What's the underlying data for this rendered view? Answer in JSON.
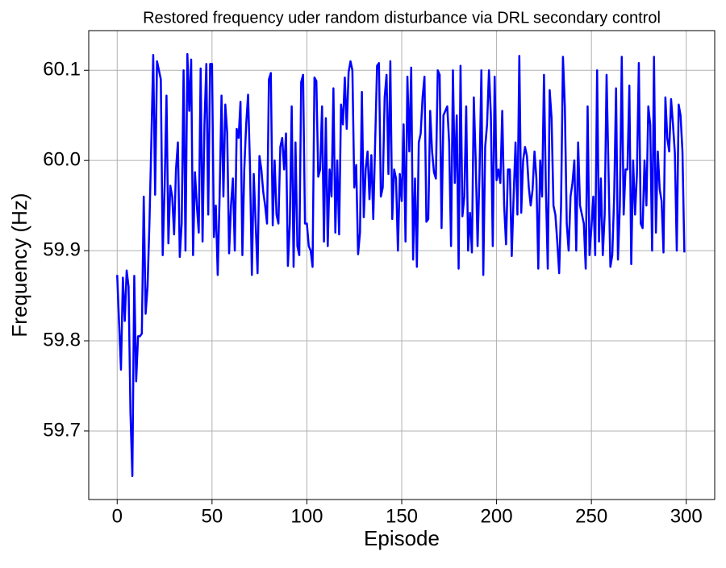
{
  "chart_data": {
    "type": "line",
    "title": "Restored frequency uder random disturbance via DRL secondary control",
    "xlabel": "Episode",
    "ylabel": "Frequency (Hz)",
    "xlim": [
      -15,
      315
    ],
    "ylim": [
      59.624,
      60.144
    ],
    "xticks": [
      0,
      50,
      100,
      150,
      200,
      250,
      300
    ],
    "yticks": [
      59.7,
      59.8,
      59.9,
      {
        "value": 60,
        "label": "60.0"
      },
      60.1
    ],
    "grid": true,
    "x": [
      0,
      1,
      2,
      3,
      4,
      5,
      6,
      7,
      8,
      9,
      10,
      11,
      12,
      13,
      14,
      15,
      16,
      17,
      18,
      19,
      20,
      21,
      22,
      23,
      24,
      25,
      26,
      27,
      28,
      29,
      30,
      31,
      32,
      33,
      34,
      35,
      36,
      37,
      38,
      39,
      40,
      41,
      42,
      43,
      44,
      45,
      46,
      47,
      48,
      49,
      50,
      51,
      52,
      53,
      54,
      55,
      56,
      57,
      58,
      59,
      60,
      61,
      62,
      63,
      64,
      65,
      66,
      67,
      68,
      69,
      70,
      71,
      72,
      73,
      74,
      75,
      76,
      77,
      78,
      79,
      80,
      81,
      82,
      83,
      84,
      85,
      86,
      87,
      88,
      89,
      90,
      91,
      92,
      93,
      94,
      95,
      96,
      97,
      98,
      99,
      100,
      101,
      102,
      103,
      104,
      105,
      106,
      107,
      108,
      109,
      110,
      111,
      112,
      113,
      114,
      115,
      116,
      117,
      118,
      119,
      120,
      121,
      122,
      123,
      124,
      125,
      126,
      127,
      128,
      129,
      130,
      131,
      132,
      133,
      134,
      135,
      136,
      137,
      138,
      139,
      140,
      141,
      142,
      143,
      144,
      145,
      146,
      147,
      148,
      149,
      150,
      151,
      152,
      153,
      154,
      155,
      156,
      157,
      158,
      159,
      160,
      161,
      162,
      163,
      164,
      165,
      166,
      167,
      168,
      169,
      170,
      171,
      172,
      173,
      174,
      175,
      176,
      177,
      178,
      179,
      180,
      181,
      182,
      183,
      184,
      185,
      186,
      187,
      188,
      189,
      190,
      191,
      192,
      193,
      194,
      195,
      196,
      197,
      198,
      199,
      200,
      201,
      202,
      203,
      204,
      205,
      206,
      207,
      208,
      209,
      210,
      211,
      212,
      213,
      214,
      215,
      216,
      217,
      218,
      219,
      220,
      221,
      222,
      223,
      224,
      225,
      226,
      227,
      228,
      229,
      230,
      231,
      232,
      233,
      234,
      235,
      236,
      237,
      238,
      239,
      240,
      241,
      242,
      243,
      244,
      245,
      246,
      247,
      248,
      249,
      250,
      251,
      252,
      253,
      254,
      255,
      256,
      257,
      258,
      259,
      260,
      261,
      262,
      263,
      264,
      265,
      266,
      267,
      268,
      269,
      270,
      271,
      272,
      273,
      274,
      275,
      276,
      277,
      278,
      279,
      280,
      281,
      282,
      283,
      284,
      285,
      286,
      287,
      288,
      289,
      290,
      291,
      292,
      293,
      294,
      295,
      296,
      297,
      298,
      299
    ],
    "series": [
      {
        "color": "#0000ff",
        "values": [
          59.873,
          59.82,
          59.768,
          59.87,
          59.822,
          59.878,
          59.86,
          59.72,
          59.65,
          59.872,
          59.755,
          59.805,
          59.805,
          59.808,
          59.96,
          59.83,
          59.86,
          59.93,
          60.02,
          60.117,
          59.962,
          60.11,
          60.1,
          60.09,
          59.895,
          59.97,
          60.072,
          59.908,
          59.972,
          59.96,
          59.918,
          59.99,
          60.02,
          59.893,
          59.93,
          60.1,
          59.9,
          60.118,
          60.055,
          60.112,
          59.895,
          59.987,
          59.95,
          59.92,
          60.102,
          59.91,
          60.04,
          60.107,
          59.94,
          60.107,
          60.107,
          59.915,
          59.95,
          59.873,
          59.96,
          60.072,
          59.96,
          60.062,
          60.03,
          59.897,
          59.95,
          59.98,
          59.9,
          60.035,
          60.025,
          60.065,
          59.895,
          59.99,
          60.04,
          60.073,
          59.995,
          59.873,
          59.985,
          59.93,
          59.875,
          60.005,
          59.99,
          59.965,
          59.95,
          59.93,
          60.09,
          60.097,
          59.928,
          60.0,
          59.94,
          59.93,
          60.015,
          60.025,
          59.99,
          60.03,
          59.883,
          59.93,
          60.06,
          59.882,
          60.02,
          59.905,
          59.895,
          60.087,
          60.095,
          59.93,
          59.93,
          59.905,
          59.9,
          59.882,
          60.092,
          60.088,
          59.982,
          59.99,
          60.06,
          59.91,
          60.047,
          59.905,
          59.99,
          59.96,
          60.08,
          59.92,
          60.0,
          59.918,
          60.062,
          60.04,
          60.092,
          60.035,
          60.098,
          60.11,
          60.1,
          59.97,
          59.995,
          59.896,
          59.92,
          60.076,
          59.937,
          59.99,
          60.01,
          59.957,
          60.006,
          59.935,
          60.02,
          60.105,
          60.108,
          59.96,
          59.97,
          60.07,
          60.095,
          59.985,
          60.11,
          59.935,
          59.99,
          59.98,
          59.9,
          59.985,
          59.955,
          60.04,
          59.91,
          60.093,
          60.01,
          60.103,
          59.89,
          59.98,
          59.882,
          60.02,
          60.03,
          60.07,
          60.093,
          59.932,
          59.935,
          60.055,
          60.01,
          59.987,
          59.98,
          60.1,
          60.095,
          59.925,
          60.05,
          60.055,
          60.06,
          60.02,
          59.905,
          60.1,
          59.975,
          60.05,
          59.88,
          60.105,
          59.938,
          59.96,
          60.06,
          59.9,
          59.942,
          59.898,
          60.07,
          60.0,
          59.905,
          59.985,
          60.1,
          59.873,
          60.015,
          60.04,
          60.1,
          60.05,
          59.905,
          60.093,
          59.978,
          59.99,
          59.975,
          60.055,
          59.95,
          59.907,
          59.99,
          59.99,
          59.894,
          59.96,
          60.02,
          59.94,
          60.116,
          59.942,
          60.0,
          60.015,
          60.005,
          59.97,
          59.95,
          59.968,
          60.01,
          59.98,
          59.88,
          60.0,
          59.96,
          60.095,
          59.968,
          59.88,
          60.078,
          60.047,
          59.95,
          59.94,
          59.91,
          59.875,
          59.95,
          60.115,
          60.06,
          59.93,
          59.9,
          59.96,
          59.975,
          60.0,
          59.9,
          60.02,
          59.95,
          59.94,
          59.93,
          59.88,
          60.06,
          59.895,
          59.925,
          59.96,
          59.895,
          60.1,
          59.91,
          59.98,
          59.895,
          59.94,
          60.095,
          59.99,
          59.882,
          59.895,
          59.96,
          60.08,
          59.89,
          59.95,
          60.115,
          59.94,
          59.99,
          59.99,
          60.083,
          59.885,
          60.0,
          59.94,
          59.985,
          60.108,
          59.93,
          59.925,
          60.0,
          59.95,
          60.06,
          60.04,
          59.9,
          60.115,
          59.92,
          60.01,
          59.968,
          59.955,
          59.898,
          60.07,
          60.025,
          60.01,
          60.068,
          60.04,
          60.008,
          59.9,
          60.062,
          60.05,
          60.01,
          59.898
        ]
      }
    ]
  }
}
